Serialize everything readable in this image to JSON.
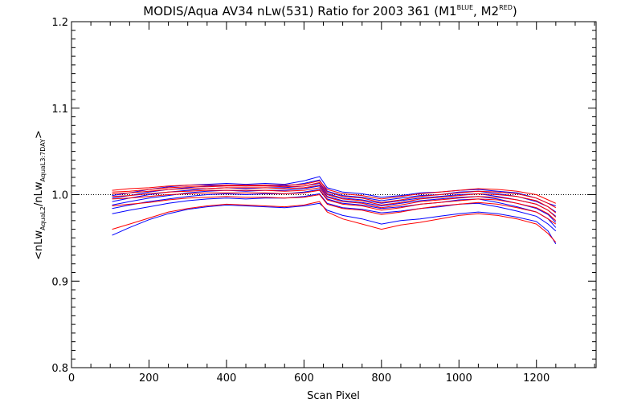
{
  "chart_data": {
    "type": "line",
    "title": {
      "main": "MODIS/Aqua AV34 nLw(531) Ratio for 2003 361 (M1",
      "sup1": "BLUE",
      "mid": ", M2",
      "sup2": "RED",
      "end": ")"
    },
    "xlabel": "Scan Pixel",
    "ylabel": {
      "open": "<nLw",
      "sub1": "AquaL2",
      "slash": "/nLw",
      "sub2": "AquaL3:7DAY",
      "close": ">"
    },
    "xlim": [
      0,
      1354
    ],
    "ylim": [
      0.8,
      1.2
    ],
    "x_ticks": [
      0,
      200,
      400,
      600,
      800,
      1000,
      1200
    ],
    "x_tick_labels": [
      "0",
      "200",
      "400",
      "600",
      "800",
      "1000",
      "1200"
    ],
    "y_ticks": [
      0.8,
      0.9,
      1.0,
      1.1,
      1.2
    ],
    "y_tick_labels": [
      "0.8",
      "0.9",
      "1.0",
      "1.1",
      "1.2"
    ],
    "reference_line": 1.0,
    "grid": false,
    "x": [
      105,
      150,
      200,
      250,
      300,
      350,
      400,
      450,
      500,
      550,
      600,
      640,
      660,
      700,
      750,
      800,
      850,
      900,
      950,
      1000,
      1050,
      1100,
      1150,
      1200,
      1230,
      1250
    ],
    "colors": {
      "M1": "#0000ff",
      "M2": "#ff0000"
    },
    "series": [
      {
        "mirror": "M1",
        "values": [
          0.999,
          1.002,
          1.006,
          1.009,
          1.011,
          1.012,
          1.013,
          1.012,
          1.013,
          1.012,
          1.016,
          1.021,
          1.008,
          1.003,
          1.001,
          0.997,
          0.999,
          1.002,
          1.003,
          1.005,
          1.006,
          1.004,
          1.002,
          0.996,
          0.99,
          0.987
        ]
      },
      {
        "mirror": "M1",
        "values": [
          0.996,
          0.999,
          1.003,
          1.006,
          1.008,
          1.01,
          1.011,
          1.01,
          1.011,
          1.01,
          1.013,
          1.017,
          1.004,
          0.999,
          0.997,
          0.993,
          0.996,
          0.999,
          1.0,
          1.003,
          1.004,
          1.001,
          0.998,
          0.992,
          0.986,
          0.98
        ]
      },
      {
        "mirror": "M1",
        "values": [
          0.992,
          0.996,
          1.0,
          1.003,
          1.005,
          1.007,
          1.008,
          1.007,
          1.008,
          1.008,
          1.01,
          1.013,
          1.001,
          0.996,
          0.994,
          0.99,
          0.993,
          0.996,
          0.998,
          1.0,
          1.001,
          0.998,
          0.994,
          0.989,
          0.982,
          0.975
        ]
      },
      {
        "mirror": "M1",
        "values": [
          0.988,
          0.992,
          0.996,
          0.999,
          1.002,
          1.004,
          1.005,
          1.004,
          1.005,
          1.005,
          1.007,
          1.01,
          0.998,
          0.993,
          0.991,
          0.987,
          0.99,
          0.993,
          0.995,
          0.997,
          0.998,
          0.995,
          0.99,
          0.984,
          0.977,
          0.968
        ]
      },
      {
        "mirror": "M1",
        "values": [
          0.984,
          0.988,
          0.992,
          0.995,
          0.998,
          1.0,
          1.001,
          1.0,
          1.001,
          1.001,
          1.003,
          1.006,
          0.995,
          0.99,
          0.988,
          0.984,
          0.986,
          0.989,
          0.991,
          0.994,
          0.995,
          0.991,
          0.986,
          0.98,
          0.972,
          0.962
        ]
      },
      {
        "mirror": "M1",
        "values": [
          0.978,
          0.982,
          0.986,
          0.99,
          0.993,
          0.995,
          0.996,
          0.995,
          0.996,
          0.996,
          0.998,
          1.001,
          0.99,
          0.985,
          0.983,
          0.979,
          0.981,
          0.984,
          0.986,
          0.989,
          0.99,
          0.986,
          0.981,
          0.975,
          0.966,
          0.958
        ]
      },
      {
        "mirror": "M1",
        "values": [
          0.953,
          0.962,
          0.971,
          0.978,
          0.983,
          0.986,
          0.988,
          0.987,
          0.986,
          0.985,
          0.987,
          0.99,
          0.982,
          0.976,
          0.972,
          0.966,
          0.97,
          0.972,
          0.975,
          0.978,
          0.98,
          0.978,
          0.974,
          0.969,
          0.958,
          0.943
        ]
      },
      {
        "mirror": "M2",
        "values": [
          1.005,
          1.007,
          1.008,
          1.01,
          1.011,
          1.011,
          1.011,
          1.011,
          1.011,
          1.011,
          1.012,
          1.016,
          1.006,
          1.001,
          0.999,
          0.995,
          0.998,
          1.001,
          1.003,
          1.005,
          1.007,
          1.006,
          1.004,
          1.0,
          0.994,
          0.99
        ]
      },
      {
        "mirror": "M2",
        "values": [
          1.003,
          1.004,
          1.006,
          1.008,
          1.009,
          1.009,
          1.01,
          1.01,
          1.01,
          1.009,
          1.01,
          1.014,
          1.003,
          0.998,
          0.996,
          0.991,
          0.994,
          0.998,
          1.0,
          1.002,
          1.004,
          1.003,
          1.001,
          0.996,
          0.99,
          0.985
        ]
      },
      {
        "mirror": "M2",
        "values": [
          1.001,
          1.002,
          1.004,
          1.006,
          1.007,
          1.007,
          1.008,
          1.008,
          1.008,
          1.007,
          1.008,
          1.011,
          1.0,
          0.995,
          0.993,
          0.988,
          0.991,
          0.995,
          0.997,
          0.999,
          1.001,
          1.0,
          0.998,
          0.993,
          0.986,
          0.979
        ]
      },
      {
        "mirror": "M2",
        "values": [
          0.998,
          0.999,
          1.001,
          1.003,
          1.004,
          1.005,
          1.005,
          1.005,
          1.005,
          1.004,
          1.005,
          1.008,
          0.997,
          0.992,
          0.99,
          0.985,
          0.988,
          0.992,
          0.994,
          0.996,
          0.998,
          0.997,
          0.994,
          0.989,
          0.982,
          0.974
        ]
      },
      {
        "mirror": "M2",
        "values": [
          0.995,
          0.996,
          0.998,
          1.0,
          1.001,
          1.002,
          1.002,
          1.002,
          1.002,
          1.001,
          1.002,
          1.005,
          0.994,
          0.989,
          0.987,
          0.982,
          0.985,
          0.989,
          0.991,
          0.993,
          0.995,
          0.994,
          0.99,
          0.985,
          0.978,
          0.97
        ]
      },
      {
        "mirror": "M2",
        "values": [
          0.987,
          0.989,
          0.991,
          0.994,
          0.996,
          0.997,
          0.998,
          0.997,
          0.997,
          0.996,
          0.997,
          1.0,
          0.989,
          0.984,
          0.982,
          0.977,
          0.98,
          0.984,
          0.987,
          0.989,
          0.991,
          0.989,
          0.985,
          0.98,
          0.972,
          0.966
        ]
      },
      {
        "mirror": "M2",
        "values": [
          0.96,
          0.966,
          0.973,
          0.98,
          0.984,
          0.987,
          0.989,
          0.988,
          0.987,
          0.986,
          0.988,
          0.992,
          0.98,
          0.972,
          0.966,
          0.96,
          0.965,
          0.968,
          0.972,
          0.976,
          0.978,
          0.976,
          0.972,
          0.966,
          0.955,
          0.945
        ]
      }
    ]
  }
}
